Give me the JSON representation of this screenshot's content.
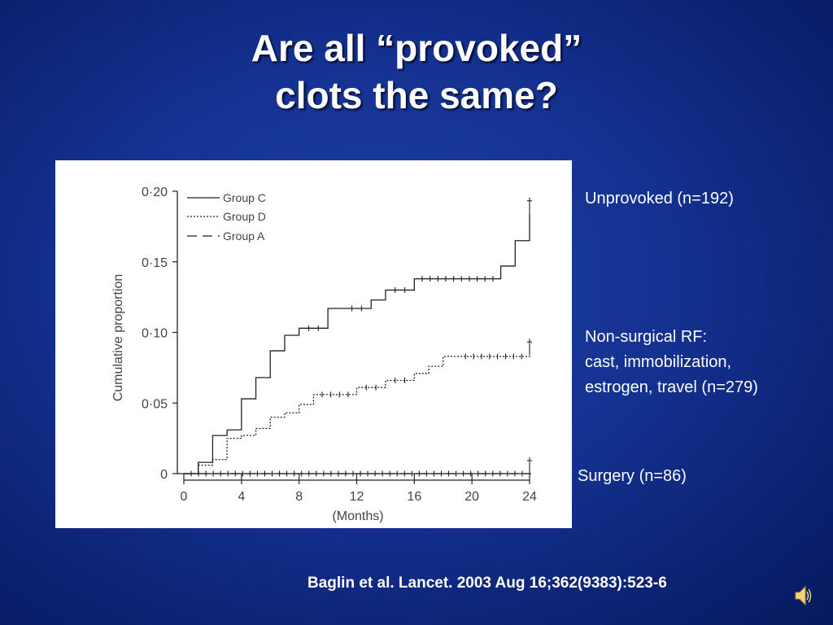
{
  "slide": {
    "title_line1": "Are all “provoked”",
    "title_line2": "clots the same?",
    "citation": "Baglin et al.  Lancet. 2003 Aug 16;362(9383):523-6"
  },
  "annotations": {
    "unprovoked": "Unprovoked (n=192)",
    "nonsurgical_line1": "Non-surgical RF:",
    "nonsurgical_line2": "cast, immobilization,",
    "nonsurgical_line3": "estrogen, travel (n=279)",
    "surgery": "Surgery (n=86)"
  },
  "chart_data": {
    "type": "line",
    "step": true,
    "xlabel": "(Months)",
    "ylabel": "Cumulative proportion",
    "xlim": [
      0,
      24
    ],
    "ylim": [
      0,
      0.2
    ],
    "xticks": [
      0,
      4,
      8,
      12,
      16,
      20,
      24
    ],
    "yticks": [
      0,
      0.05,
      0.1,
      0.15,
      0.2
    ],
    "ytick_labels": [
      "0",
      "0·05",
      "0·10",
      "0·15",
      "0·20"
    ],
    "legend_position": "top-left",
    "grid": false,
    "series": [
      {
        "name": "Group C",
        "style": "solid",
        "x": [
          0,
          1,
          2,
          3,
          4,
          5,
          6,
          7,
          8,
          10,
          11,
          13,
          14,
          16,
          22,
          23,
          24
        ],
        "y": [
          0,
          0.008,
          0.027,
          0.031,
          0.053,
          0.068,
          0.087,
          0.098,
          0.103,
          0.117,
          0.117,
          0.123,
          0.13,
          0.138,
          0.147,
          0.165,
          0.184
        ]
      },
      {
        "name": "Group D",
        "style": "dotted",
        "x": [
          0,
          1,
          2,
          3,
          4,
          5,
          6,
          7,
          8,
          9,
          12,
          14,
          16,
          17,
          18,
          19,
          24
        ],
        "y": [
          0,
          0.006,
          0.01,
          0.025,
          0.027,
          0.032,
          0.04,
          0.043,
          0.049,
          0.056,
          0.061,
          0.066,
          0.071,
          0.076,
          0.083,
          0.083,
          0.084
        ]
      },
      {
        "name": "Group A",
        "style": "dashed",
        "x": [
          0,
          24
        ],
        "y": [
          0,
          0
        ]
      }
    ]
  }
}
